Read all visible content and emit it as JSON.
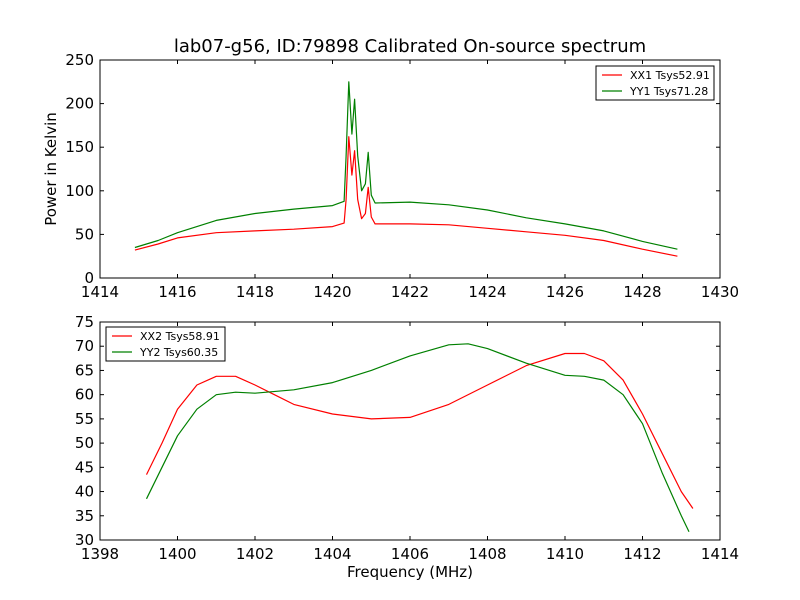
{
  "chart_data": [
    {
      "type": "line",
      "title": "lab07-g56, ID:79898 Calibrated On-source spectrum",
      "xlabel": "",
      "ylabel": "Power in Kelvin",
      "xlim": [
        1414,
        1430
      ],
      "ylim": [
        0,
        250
      ],
      "xticks": [
        1414,
        1416,
        1418,
        1420,
        1422,
        1424,
        1426,
        1428,
        1430
      ],
      "yticks": [
        0,
        50,
        100,
        150,
        200,
        250
      ],
      "legend_position": "top-right",
      "series": [
        {
          "name": "XX1 Tsys52.91",
          "color": "#ff0000",
          "x": [
            1414.9,
            1415.5,
            1416,
            1417,
            1418,
            1419,
            1420,
            1420.3,
            1420.35,
            1420.42,
            1420.5,
            1420.57,
            1420.65,
            1420.75,
            1420.85,
            1420.92,
            1421,
            1421.1,
            1422,
            1423,
            1424,
            1425,
            1426,
            1427,
            1428,
            1428.9
          ],
          "y": [
            32,
            39,
            46,
            52,
            54,
            56,
            59,
            63,
            90,
            162,
            118,
            146,
            90,
            68,
            74,
            104,
            70,
            62,
            62,
            61,
            57,
            53,
            49,
            43,
            33,
            25
          ]
        },
        {
          "name": "YY1 Tsys71.28",
          "color": "#008000",
          "x": [
            1414.9,
            1415.5,
            1416,
            1417,
            1418,
            1419,
            1420,
            1420.3,
            1420.35,
            1420.42,
            1420.5,
            1420.57,
            1420.65,
            1420.75,
            1420.85,
            1420.92,
            1421,
            1421.1,
            1422,
            1423,
            1424,
            1425,
            1426,
            1427,
            1428,
            1428.9
          ],
          "y": [
            35,
            43,
            52,
            66,
            74,
            79,
            83,
            88,
            140,
            225,
            165,
            205,
            140,
            100,
            108,
            144,
            95,
            86,
            87,
            84,
            78,
            69,
            62,
            54,
            42,
            33
          ]
        }
      ]
    },
    {
      "type": "line",
      "title": "",
      "xlabel": "Frequency (MHz)",
      "ylabel": "",
      "xlim": [
        1398,
        1414
      ],
      "ylim": [
        30,
        75
      ],
      "xticks": [
        1398,
        1400,
        1402,
        1404,
        1406,
        1408,
        1410,
        1412,
        1414
      ],
      "yticks": [
        30,
        35,
        40,
        45,
        50,
        55,
        60,
        65,
        70,
        75
      ],
      "legend_position": "top-left",
      "series": [
        {
          "name": "XX2 Tsys58.91",
          "color": "#ff0000",
          "x": [
            1399.2,
            1399.6,
            1400,
            1400.5,
            1401,
            1401.5,
            1402,
            1402.5,
            1403,
            1404,
            1405,
            1406,
            1407,
            1408,
            1409,
            1410,
            1410.5,
            1411,
            1411.5,
            1412,
            1412.5,
            1413,
            1413.3
          ],
          "y": [
            43.5,
            50,
            57,
            62,
            63.8,
            63.8,
            62,
            60,
            58,
            56,
            55,
            55.3,
            58,
            62,
            66,
            68.5,
            68.5,
            67,
            63,
            56,
            48,
            40,
            36.5
          ]
        },
        {
          "name": "YY2 Tsys60.35",
          "color": "#008000",
          "x": [
            1399.2,
            1399.6,
            1400,
            1400.5,
            1401,
            1401.5,
            1402,
            1403,
            1404,
            1405,
            1406,
            1407,
            1407.5,
            1408,
            1409,
            1410,
            1410.5,
            1411,
            1411.5,
            1412,
            1412.5,
            1413,
            1413.2
          ],
          "y": [
            38.5,
            45,
            51.5,
            57,
            60,
            60.5,
            60.3,
            61,
            62.5,
            65,
            68,
            70.3,
            70.5,
            69.5,
            66.5,
            64,
            63.8,
            63,
            60,
            54,
            44,
            35,
            31.7
          ]
        }
      ]
    }
  ]
}
